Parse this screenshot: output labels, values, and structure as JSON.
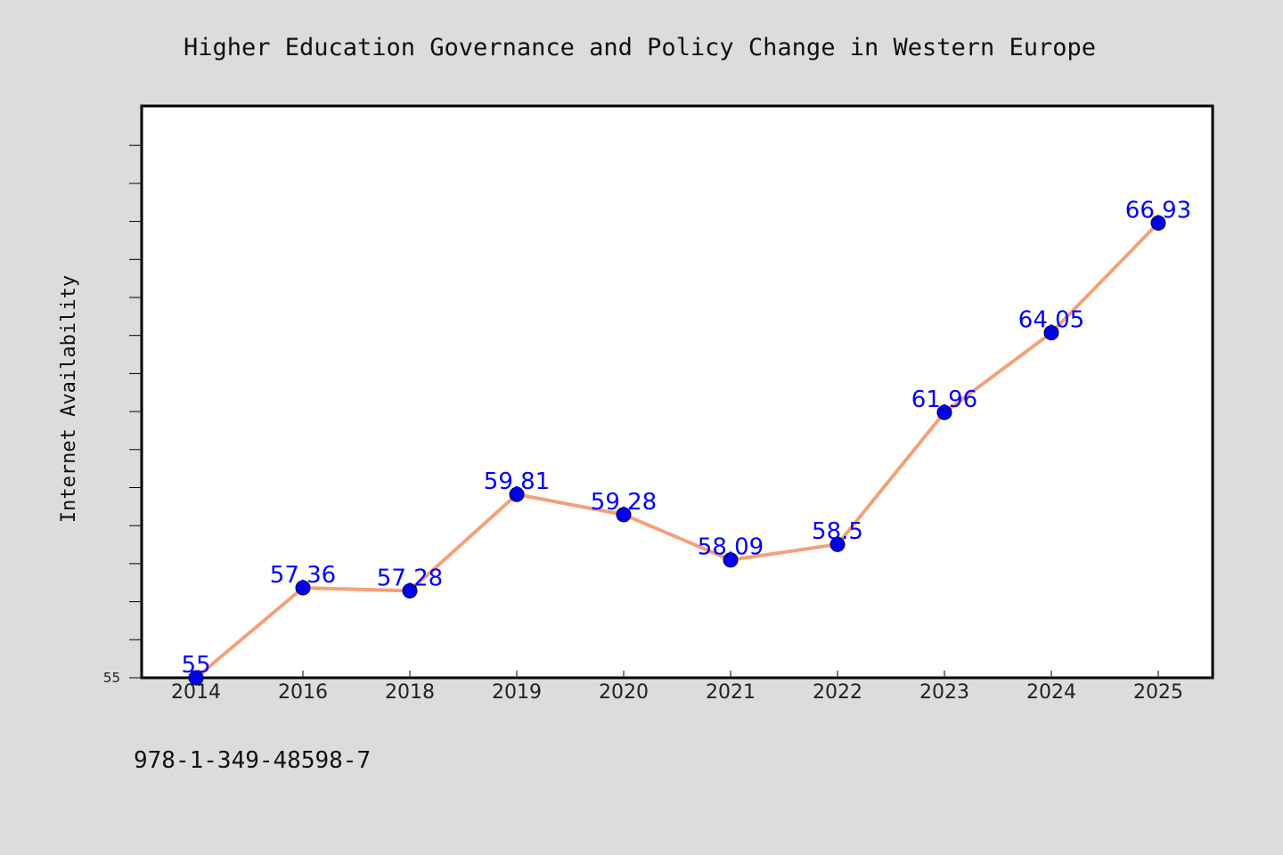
{
  "chart_data": {
    "type": "line",
    "title": "Higher Education Governance and Policy Change in Western Europe",
    "xlabel": "",
    "ylabel": "Internet Availability",
    "categories": [
      "2014",
      "2016",
      "2018",
      "2019",
      "2020",
      "2021",
      "2022",
      "2023",
      "2024",
      "2025"
    ],
    "series": [
      {
        "values": [
          55,
          57.36,
          57.28,
          59.81,
          59.28,
          58.09,
          58.5,
          61.96,
          64.05,
          66.93
        ],
        "data_labels": [
          "55",
          "57.36",
          "57.28",
          "59.81",
          "59.28",
          "58.09",
          "58.5",
          "61.96",
          "64.05",
          "66.93"
        ],
        "line_color": "#f4a07a",
        "marker_color": "#0000ee",
        "label_color": "#0000ff"
      }
    ],
    "yticks_labeled": [
      "55"
    ],
    "ylim": [
      55,
      70
    ],
    "grid": false,
    "legend": "none"
  },
  "footer": {
    "code": "978-1-349-48598-7"
  },
  "colors": {
    "background": "#dcdcdc",
    "plot_background": "#ffffff",
    "axis": "#000000"
  }
}
